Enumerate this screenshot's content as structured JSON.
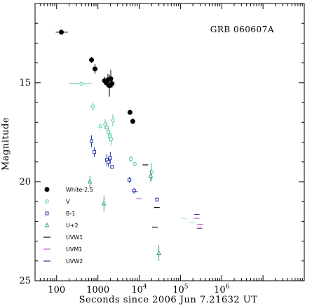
{
  "chart_data": {
    "type": "scatter",
    "title": "GRB 060607A",
    "xlabel": "Seconds since 2006 Jun 7.21632 UT",
    "ylabel": "Magnitude",
    "xscale": "log",
    "xlim": [
      30,
      100000000
    ],
    "ylim": [
      25,
      11
    ],
    "x_ticks": [
      {
        "value": 100,
        "label": "100"
      },
      {
        "value": 1000,
        "label": "1000"
      },
      {
        "value": 10000,
        "label": "10",
        "exp": "4"
      },
      {
        "value": 100000,
        "label": "10",
        "exp": "5"
      },
      {
        "value": 1000000,
        "label": "10",
        "exp": "6"
      }
    ],
    "y_ticks": [
      {
        "value": 15,
        "label": "15"
      },
      {
        "value": 20,
        "label": "20"
      },
      {
        "value": 25,
        "label": "25"
      }
    ],
    "legend_position": "lower-left",
    "series": [
      {
        "name": "White-2.5",
        "marker": "filled-circle",
        "color": "#000000",
        "points": [
          {
            "x": 130,
            "y": 12.45,
            "xerr": [
              95,
              185
            ],
            "yerr": 0.05
          },
          {
            "x": 700,
            "y": 13.85,
            "yerr": 0.15
          },
          {
            "x": 850,
            "y": 14.3,
            "yerr": 0.25
          },
          {
            "x": 1450,
            "y": 14.9,
            "yerr": 0.2
          },
          {
            "x": 1600,
            "y": 15.0,
            "yerr": 0.2
          },
          {
            "x": 1750,
            "y": 14.85,
            "yerr": 0.3
          },
          {
            "x": 1900,
            "y": 15.15,
            "yerr": 0.55
          },
          {
            "x": 2050,
            "y": 14.8,
            "yerr": 0.45
          },
          {
            "x": 2200,
            "y": 15.05,
            "yerr": 0.2
          },
          {
            "x": 6000,
            "y": 16.5,
            "yerr": 0.1
          },
          {
            "x": 7000,
            "y": 16.95,
            "yerr": 0.15
          }
        ]
      },
      {
        "name": "V",
        "marker": "open-circle",
        "color": "#4bc7a6",
        "points": [
          {
            "x": 400,
            "y": 15.05,
            "xerr": [
              200,
              700
            ],
            "yerr": 0.05
          },
          {
            "x": 760,
            "y": 16.2,
            "yerr": 0.2
          },
          {
            "x": 1150,
            "y": 17.2,
            "yerr": 0.1
          },
          {
            "x": 1500,
            "y": 17.1,
            "yerr": 0.25
          },
          {
            "x": 1650,
            "y": 17.25,
            "yerr": 0.3
          },
          {
            "x": 1800,
            "y": 17.5,
            "yerr": 0.3
          },
          {
            "x": 1950,
            "y": 17.7,
            "yerr": 0.3
          },
          {
            "x": 2100,
            "y": 17.85,
            "yerr": 0.3
          },
          {
            "x": 2300,
            "y": 16.9,
            "yerr": 0.3
          },
          {
            "x": 6300,
            "y": 18.85,
            "yerr": 0.15
          },
          {
            "x": 7800,
            "y": 19.1,
            "yerr": 0.1
          },
          {
            "x": 20000,
            "y": 19.5,
            "yerr": 0.45
          }
        ]
      },
      {
        "name": "B-1",
        "marker": "open-square",
        "color": "#1f36a6",
        "points": [
          {
            "x": 700,
            "y": 17.95,
            "yerr": 0.3
          },
          {
            "x": 820,
            "y": 18.5,
            "yerr": 0.25
          },
          {
            "x": 1650,
            "y": 18.9,
            "yerr": 0.3
          },
          {
            "x": 1800,
            "y": 19.0,
            "yerr": 0.25
          },
          {
            "x": 2000,
            "y": 18.8,
            "yerr": 0.3
          },
          {
            "x": 2200,
            "y": 19.25,
            "yerr": 0.05
          },
          {
            "x": 5800,
            "y": 19.9,
            "yerr": 0.15
          },
          {
            "x": 7500,
            "y": 20.45,
            "yerr": 0.15
          },
          {
            "x": 27000,
            "y": 20.9,
            "yerr": 0.1
          }
        ]
      },
      {
        "name": "U+2",
        "marker": "open-triangle",
        "color": "#2f9a86",
        "points": [
          {
            "x": 640,
            "y": 20.0,
            "yerr": 0.3
          },
          {
            "x": 1400,
            "y": 21.1,
            "yerr": 0.4
          },
          {
            "x": 19000,
            "y": 19.7,
            "yerr": 0.3
          },
          {
            "x": 30000,
            "y": 23.6,
            "yerr": 0.4
          }
        ]
      },
      {
        "name": "UVW1",
        "marker": "bar",
        "color": "#111111",
        "points": [
          {
            "x": 14000,
            "y": 19.15,
            "xerr": [
              12000,
              16500
            ]
          },
          {
            "x": 27000,
            "y": 21.3,
            "xerr": [
              23000,
              31500
            ]
          },
          {
            "x": 24000,
            "y": 22.3,
            "xerr": [
              20500,
              28000
            ]
          }
        ]
      },
      {
        "name": "UVM1",
        "marker": "bar",
        "color": "#c76ad6",
        "points": [
          {
            "x": 10000,
            "y": 20.85,
            "xerr": [
              8500,
              11500
            ]
          },
          {
            "x": 250000,
            "y": 21.85,
            "xerr": [
              215000,
              290000
            ]
          },
          {
            "x": 300000,
            "y": 22.15,
            "xerr": [
              250000,
              350000
            ]
          }
        ]
      },
      {
        "name": "UVW2",
        "marker": "bar",
        "color": "#5d2ea0",
        "points": [
          {
            "x": 8000,
            "y": 20.5,
            "xerr": [
              6900,
              9300
            ]
          },
          {
            "x": 250000,
            "y": 21.65,
            "xerr": [
              215000,
              290000
            ]
          },
          {
            "x": 290000,
            "y": 22.35,
            "xerr": [
              250000,
              335000
            ]
          }
        ]
      },
      {
        "name": "",
        "marker": "bar",
        "color": "#9fe3c9",
        "points": [
          {
            "x": 120000,
            "y": 21.85,
            "xerr": [
              105000,
              138000
            ]
          },
          {
            "x": 190000,
            "y": 22.05,
            "xerr": [
              165000,
              220000
            ]
          }
        ]
      }
    ]
  }
}
